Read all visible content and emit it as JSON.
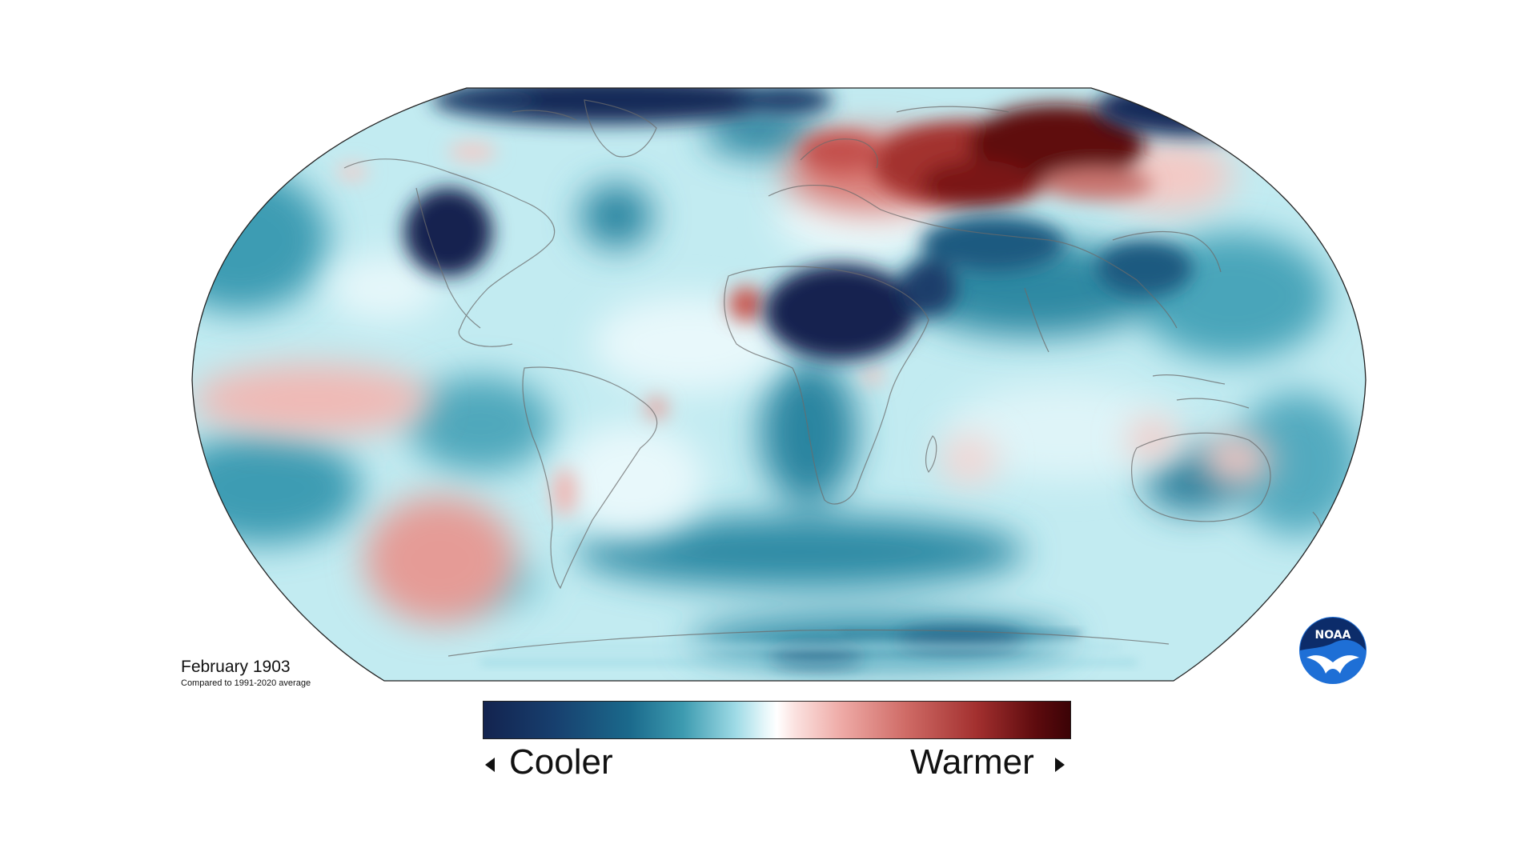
{
  "title": "February 1903",
  "subtitle": "Compared to 1991-2020 average",
  "legend": {
    "low_label": "Cooler",
    "high_label": "Warmer",
    "colors": [
      "#13234f",
      "#1b6a8c",
      "#9fdbe6",
      "#ffffff",
      "#eeaaa6",
      "#a3302f",
      "#3b0306"
    ]
  },
  "map": {
    "projection": "Robinson",
    "variable": "temperature anomaly",
    "ocean_base_color": "#b5e3ec",
    "coastline_color": "#6b6b6b"
  },
  "logo": {
    "text": "NOAA",
    "icon": "noaa-logo"
  }
}
